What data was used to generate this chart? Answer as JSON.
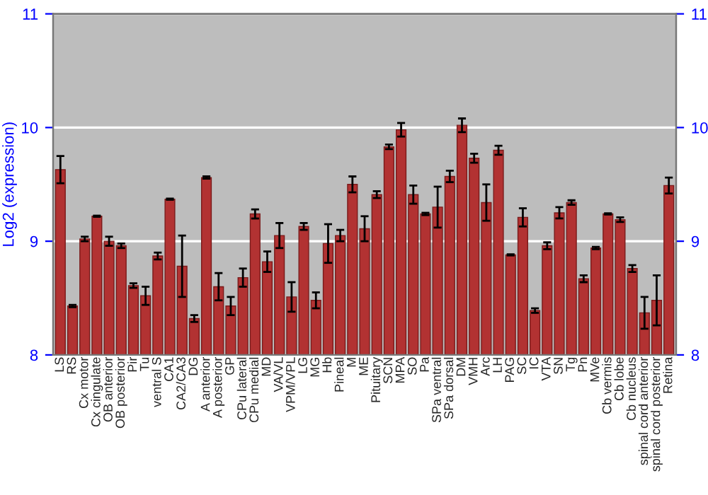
{
  "chart_data": {
    "type": "bar",
    "ylabel": "Log2 (expression)",
    "categories": [
      "LS",
      "RS",
      "Cx motor",
      "Cx cingulate",
      "OB anterior",
      "OB posterior",
      "Pir",
      "Tu",
      "ventral S",
      "CA1",
      "CA2/CA3",
      "DG",
      "A anterior",
      "A posterior",
      "GP",
      "CPu lateral",
      "CPu medial",
      "MD",
      "VA/VL",
      "VPM/VPL",
      "LG",
      "MG",
      "Hb",
      "Pineal",
      "M",
      "ME",
      "Pituitary",
      "SCN",
      "MPA",
      "SO",
      "Pa",
      "SPa ventral",
      "SPa dorsal",
      "DM",
      "VMH",
      "Arc",
      "LH",
      "PAG",
      "SC",
      "IC",
      "VTA",
      "SN",
      "Tg",
      "Pn",
      "MVe",
      "Cb vermis",
      "Cb lobe",
      "Cb nucleus",
      "spinal cord anterior",
      "spinal cord posterior",
      "Retina"
    ],
    "values": [
      9.63,
      8.43,
      9.02,
      9.22,
      9.0,
      8.96,
      8.61,
      8.52,
      8.87,
      9.37,
      8.78,
      8.32,
      9.56,
      8.6,
      8.43,
      8.68,
      9.24,
      8.82,
      9.05,
      8.51,
      9.13,
      8.48,
      8.98,
      9.05,
      9.5,
      9.11,
      9.41,
      9.83,
      9.98,
      9.41,
      9.24,
      9.3,
      9.57,
      10.02,
      9.73,
      9.34,
      9.8,
      8.88,
      9.21,
      8.39,
      8.96,
      9.25,
      9.34,
      8.67,
      8.94,
      9.24,
      9.19,
      8.76,
      8.37,
      8.48,
      9.49
    ],
    "errors": [
      0.12,
      0.01,
      0.02,
      0.005,
      0.04,
      0.02,
      0.02,
      0.08,
      0.03,
      0.005,
      0.27,
      0.03,
      0.01,
      0.12,
      0.08,
      0.08,
      0.04,
      0.09,
      0.11,
      0.13,
      0.03,
      0.07,
      0.17,
      0.05,
      0.07,
      0.11,
      0.03,
      0.02,
      0.06,
      0.08,
      0.01,
      0.18,
      0.05,
      0.06,
      0.04,
      0.16,
      0.04,
      0.005,
      0.08,
      0.02,
      0.03,
      0.05,
      0.02,
      0.03,
      0.01,
      0.005,
      0.02,
      0.03,
      0.14,
      0.22,
      0.07
    ],
    "color": "#b23232",
    "ylim": [
      8,
      11
    ],
    "yticks": [
      8,
      9,
      10,
      11
    ],
    "y2lim": [
      8,
      11
    ],
    "y2ticks": [
      8,
      9,
      10,
      11
    ],
    "grid": "y"
  }
}
